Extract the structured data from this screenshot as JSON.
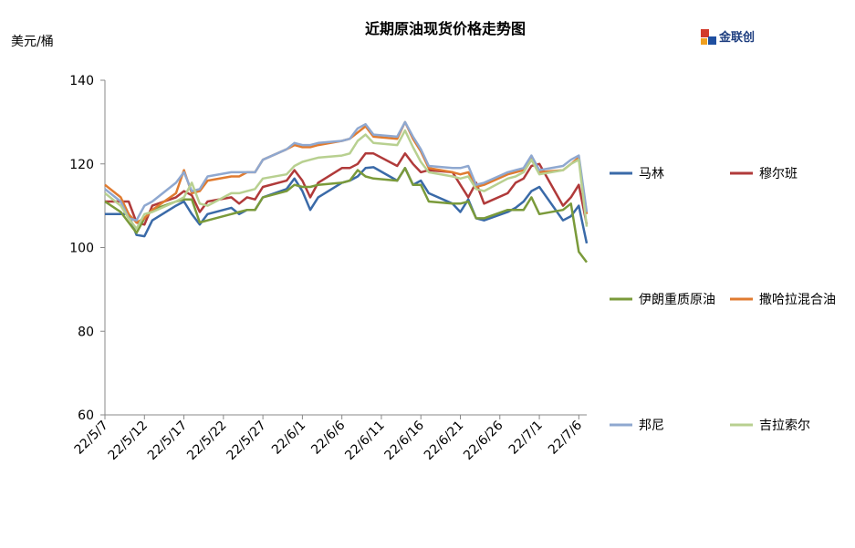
{
  "chart_data": {
    "type": "line",
    "title": "近期原油现货价格走势图",
    "y_label": "美元/桶",
    "logo_text": "金联创",
    "x": [
      "22/5/7",
      "22/5/9",
      "22/5/10",
      "22/5/11",
      "22/5/12",
      "22/5/13",
      "22/5/16",
      "22/5/17",
      "22/5/18",
      "22/5/19",
      "22/5/20",
      "22/5/23",
      "22/5/24",
      "22/5/25",
      "22/5/26",
      "22/5/27",
      "22/5/30",
      "22/5/31",
      "22/6/1",
      "22/6/2",
      "22/6/3",
      "22/6/6",
      "22/6/7",
      "22/6/8",
      "22/6/9",
      "22/6/10",
      "22/6/13",
      "22/6/14",
      "22/6/15",
      "22/6/16",
      "22/6/17",
      "22/6/20",
      "22/6/21",
      "22/6/22",
      "22/6/23",
      "22/6/24",
      "22/6/27",
      "22/6/28",
      "22/6/29",
      "22/6/30",
      "22/7/1",
      "22/7/4",
      "22/7/5",
      "22/7/6",
      "22/7/7"
    ],
    "xlim": [
      "22/5/7",
      "22/7/7"
    ],
    "xticks": [
      "22/5/7",
      "22/5/12",
      "22/5/17",
      "22/5/22",
      "22/5/27",
      "22/6/1",
      "22/6/6",
      "22/6/11",
      "22/6/16",
      "22/6/21",
      "22/6/26",
      "22/7/1",
      "22/7/6"
    ],
    "ylim": [
      60,
      140
    ],
    "yticks": [
      60,
      80,
      100,
      120,
      140
    ],
    "grid": false,
    "series": [
      {
        "name": "马林",
        "color": "#3a6aa8",
        "values": [
          108,
          108,
          108,
          103,
          102.7,
          106.5,
          110,
          111,
          108,
          105.5,
          108,
          109.5,
          108,
          109,
          109,
          112,
          114,
          116.5,
          113.5,
          109,
          112,
          115.5,
          116,
          117,
          119,
          119.2,
          116,
          119,
          115,
          116,
          113,
          110.5,
          108.5,
          111.5,
          107,
          106.5,
          108.5,
          109.5,
          111,
          113.5,
          114.5,
          106.5,
          107.5,
          110,
          101
        ]
      },
      {
        "name": "穆尔班",
        "color": "#b03a3a",
        "values": [
          111,
          111,
          111,
          106,
          105.5,
          110,
          112,
          113.5,
          112.5,
          108.5,
          111,
          112,
          110.5,
          112,
          111.5,
          114.5,
          116,
          118.5,
          116,
          112,
          115.5,
          119,
          119,
          120,
          122.5,
          122.5,
          119.5,
          122.5,
          120,
          118,
          118.5,
          118,
          115,
          112,
          115.5,
          110.5,
          113,
          115.5,
          116.5,
          119.5,
          120,
          110,
          112,
          115,
          105.5
        ]
      },
      {
        "name": "伊朗重质原油",
        "color": "#7a9a3a",
        "values": [
          111,
          108.5,
          106,
          103.5,
          107,
          109,
          111,
          111.5,
          111.5,
          106,
          106.5,
          108,
          108.5,
          109,
          109,
          112,
          113.5,
          115,
          114.5,
          114.5,
          115,
          115.5,
          116,
          118.5,
          117,
          116.5,
          116,
          119,
          115,
          115,
          111,
          110.5,
          110.5,
          111,
          107,
          107,
          109,
          109,
          109,
          112,
          108,
          109,
          110.5,
          99,
          96.5
        ]
      },
      {
        "name": "撒哈拉混合油",
        "color": "#e07b30",
        "values": [
          115,
          112,
          108,
          106,
          107,
          109,
          113,
          118.5,
          113,
          113.5,
          116,
          117,
          117,
          118,
          118,
          121,
          123.5,
          124.5,
          124,
          124,
          124.5,
          125.5,
          126,
          127.5,
          129,
          126.5,
          126,
          130,
          126,
          123,
          119,
          118,
          117.5,
          118,
          114.5,
          115,
          117.5,
          118,
          118.5,
          121.5,
          118,
          118.5,
          120,
          121.5,
          108
        ]
      },
      {
        "name": "邦尼",
        "color": "#8fa8d0",
        "values": [
          114,
          111,
          107,
          106.5,
          110,
          111,
          115.5,
          118,
          113.5,
          114,
          117,
          118,
          118,
          118,
          118,
          121,
          123.5,
          125,
          124.5,
          124.5,
          125,
          125.5,
          126,
          128.5,
          129.5,
          127,
          126.5,
          130,
          126.5,
          123.5,
          119.5,
          119,
          119,
          119.5,
          115,
          115.5,
          118,
          118.5,
          119,
          122,
          118.5,
          119.5,
          121,
          122,
          108.5
        ]
      },
      {
        "name": "吉拉索尔",
        "color": "#b8d090",
        "values": [
          113,
          110,
          107,
          104.5,
          108,
          108.5,
          111,
          112,
          115.5,
          110.5,
          110,
          113,
          113,
          113.5,
          114,
          116.5,
          117.5,
          119.5,
          120.5,
          121,
          121.5,
          122,
          122.5,
          125.5,
          127,
          125,
          124.5,
          128,
          124,
          120.5,
          118,
          117,
          116.5,
          117,
          114,
          113.5,
          116.5,
          117,
          118,
          121,
          117.5,
          118.5,
          120,
          121,
          105
        ]
      }
    ]
  }
}
